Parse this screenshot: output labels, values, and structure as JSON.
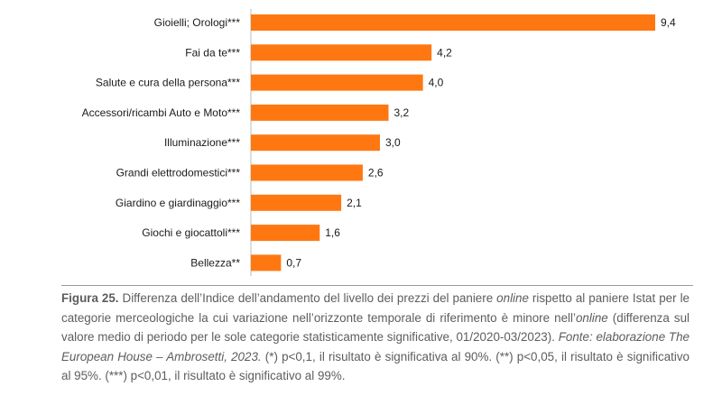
{
  "chart_data": {
    "type": "bar",
    "orientation": "horizontal",
    "categories": [
      "Gioielli; Orologi***",
      "Fai da te***",
      "Salute e cura della persona***",
      "Accessori/ricambi Auto e Moto***",
      "Illuminazione***",
      "Grandi elettrodomestici***",
      "Giardino e giardinaggio***",
      "Giochi e giocattoli***",
      "Bellezza**"
    ],
    "values": [
      9.4,
      4.2,
      4.0,
      3.2,
      3.0,
      2.6,
      2.1,
      1.6,
      0.7
    ],
    "value_labels": [
      "9,4",
      "4,2",
      "4,0",
      "3,2",
      "3,0",
      "2,6",
      "2,1",
      "1,6",
      "0,7"
    ],
    "xlim": [
      0,
      9.4
    ],
    "bar_color": "#ff7711",
    "grid": false,
    "legend": "none"
  },
  "caption": {
    "label": "Figura 25.",
    "p1": " Differenza dell’Indice dell’andamento del livello dei prezzi del paniere ",
    "online1": "online",
    "p2": " rispetto al paniere Istat per le categorie merceologiche la cui variazione nell’orizzonte temporale di riferimento è minore nell’",
    "online2": "online",
    "p3": " (differenza sul valore medio di periodo per le sole categorie statisticamente significative, 01/2020-03/2023). ",
    "source": "Fonte: elaborazione The European House – Ambrosetti, 2023.",
    "notes": " (*) p<0,1, il risultato è significativa al 90%. (**) p<0,05, il risultato è significativo al 95%. (***) p<0,01, il risultato è significativo al 99%."
  }
}
